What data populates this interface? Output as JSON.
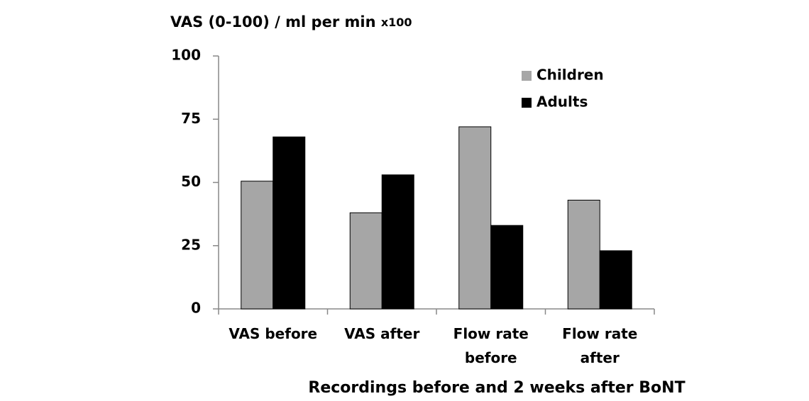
{
  "chart_data": {
    "type": "bar",
    "ylabel": "VAS (0-100) / ml per min",
    "ylabel_suffix": "x100",
    "xlabel": "Recordings before and 2 weeks after BoNT",
    "categories": [
      "VAS before",
      "VAS after",
      "Flow rate\nbefore",
      "Flow rate\nafter"
    ],
    "series": [
      {
        "name": "Children",
        "color": "#a6a6a6",
        "values": [
          50.5,
          38,
          72,
          43
        ]
      },
      {
        "name": "Adults",
        "color": "#000000",
        "values": [
          68,
          53,
          33,
          23
        ]
      }
    ],
    "ylim": [
      0,
      100
    ],
    "yticks": [
      0,
      25,
      50,
      75,
      100
    ],
    "grid": false,
    "legend": "upper right"
  }
}
